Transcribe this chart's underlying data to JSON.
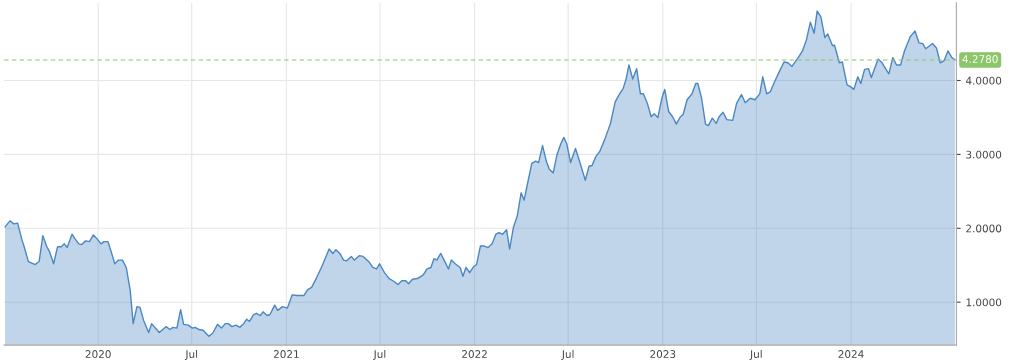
{
  "chart_data": {
    "type": "area",
    "x": [
      2019.505,
      2019.531,
      2019.552,
      2019.572,
      2019.593,
      2019.608,
      2019.629,
      2019.665,
      2019.686,
      2019.706,
      2019.727,
      2019.742,
      2019.763,
      2019.784,
      2019.804,
      2019.82,
      2019.835,
      2019.861,
      2019.876,
      2019.897,
      2019.912,
      2019.933,
      2019.954,
      2019.974,
      2019.99,
      2020.015,
      2020.031,
      2020.052,
      2020.067,
      2020.088,
      2020.108,
      2020.129,
      2020.149,
      2020.17,
      2020.186,
      2020.206,
      2020.222,
      2020.242,
      2020.268,
      2020.284,
      2020.304,
      2020.325,
      2020.361,
      2020.381,
      2020.397,
      2020.418,
      2020.438,
      2020.454,
      2020.479,
      2020.5,
      2020.515,
      2020.536,
      2020.557,
      2020.588,
      2020.608,
      2020.634,
      2020.655,
      2020.675,
      2020.691,
      2020.711,
      2020.732,
      2020.753,
      2020.773,
      2020.789,
      2020.804,
      2020.825,
      2020.84,
      2020.861,
      2020.876,
      2020.897,
      2020.912,
      2020.938,
      2020.954,
      2020.979,
      2021.005,
      2021.031,
      2021.057,
      2021.093,
      2021.113,
      2021.134,
      2021.16,
      2021.186,
      2021.227,
      2021.247,
      2021.263,
      2021.284,
      2021.304,
      2021.32,
      2021.345,
      2021.361,
      2021.387,
      2021.407,
      2021.428,
      2021.438,
      2021.459,
      2021.479,
      2021.495,
      2021.521,
      2021.546,
      2021.572,
      2021.593,
      2021.613,
      2021.634,
      2021.649,
      2021.67,
      2021.696,
      2021.727,
      2021.747,
      2021.768,
      2021.784,
      2021.799,
      2021.82,
      2021.84,
      2021.861,
      2021.876,
      2021.897,
      2021.923,
      2021.938,
      2021.954,
      2021.974,
      2021.995,
      2022.01,
      2022.031,
      2022.052,
      2022.072,
      2022.093,
      2022.113,
      2022.129,
      2022.149,
      2022.17,
      2022.186,
      2022.206,
      2022.227,
      2022.247,
      2022.263,
      2022.284,
      2022.304,
      2022.325,
      2022.34,
      2022.361,
      2022.381,
      2022.397,
      2022.418,
      2022.438,
      2022.459,
      2022.474,
      2022.49,
      2022.51,
      2022.536,
      2022.562,
      2022.588,
      2022.608,
      2022.624,
      2022.644,
      2022.665,
      2022.691,
      2022.722,
      2022.747,
      2022.768,
      2022.789,
      2022.804,
      2022.82,
      2022.84,
      2022.861,
      2022.881,
      2022.897,
      2022.918,
      2022.938,
      2022.954,
      2022.974,
      2022.995,
      2023.01,
      2023.031,
      2023.052,
      2023.072,
      2023.093,
      2023.108,
      2023.129,
      2023.155,
      2023.175,
      2023.186,
      2023.206,
      2023.227,
      2023.242,
      2023.263,
      2023.284,
      2023.299,
      2023.32,
      2023.34,
      2023.371,
      2023.392,
      2023.418,
      2023.438,
      2023.464,
      2023.49,
      2023.515,
      2023.531,
      2023.552,
      2023.572,
      2023.593,
      2023.619,
      2023.644,
      2023.665,
      2023.686,
      2023.722,
      2023.742,
      2023.763,
      2023.784,
      2023.804,
      2023.82,
      2023.84,
      2023.861,
      2023.876,
      2023.902,
      2023.912,
      2023.938,
      2023.954,
      2023.979,
      2023.995,
      2024.015,
      2024.036,
      2024.052,
      2024.072,
      2024.093,
      2024.108,
      2024.144,
      2024.165,
      2024.201,
      2024.222,
      2024.242,
      2024.263,
      2024.284,
      2024.314,
      2024.34,
      2024.361,
      2024.381,
      2024.397,
      2024.433,
      2024.454,
      2024.474,
      2024.495,
      2024.515,
      2024.536,
      2024.552
    ],
    "series": [
      {
        "color": "#4a87c2",
        "values": [
          2.02,
          2.1,
          2.06,
          2.07,
          1.86,
          1.74,
          1.55,
          1.51,
          1.55,
          1.9,
          1.75,
          1.68,
          1.52,
          1.75,
          1.75,
          1.79,
          1.74,
          1.92,
          1.86,
          1.79,
          1.78,
          1.83,
          1.82,
          1.91,
          1.87,
          1.79,
          1.82,
          1.82,
          1.7,
          1.52,
          1.57,
          1.57,
          1.47,
          1.16,
          0.71,
          0.94,
          0.93,
          0.75,
          0.59,
          0.71,
          0.65,
          0.59,
          0.67,
          0.63,
          0.66,
          0.65,
          0.9,
          0.7,
          0.69,
          0.65,
          0.66,
          0.63,
          0.62,
          0.54,
          0.58,
          0.7,
          0.65,
          0.71,
          0.71,
          0.67,
          0.69,
          0.66,
          0.71,
          0.77,
          0.74,
          0.83,
          0.85,
          0.82,
          0.87,
          0.82,
          0.83,
          0.96,
          0.89,
          0.94,
          0.92,
          1.1,
          1.09,
          1.09,
          1.17,
          1.2,
          1.33,
          1.47,
          1.72,
          1.66,
          1.71,
          1.66,
          1.57,
          1.56,
          1.62,
          1.57,
          1.63,
          1.62,
          1.57,
          1.55,
          1.47,
          1.45,
          1.52,
          1.4,
          1.32,
          1.28,
          1.24,
          1.29,
          1.29,
          1.25,
          1.31,
          1.32,
          1.37,
          1.45,
          1.47,
          1.59,
          1.57,
          1.66,
          1.56,
          1.45,
          1.57,
          1.52,
          1.47,
          1.35,
          1.47,
          1.4,
          1.48,
          1.51,
          1.76,
          1.76,
          1.74,
          1.79,
          1.92,
          1.94,
          1.92,
          1.98,
          1.72,
          2.01,
          2.17,
          2.48,
          2.38,
          2.64,
          2.88,
          2.91,
          2.89,
          3.12,
          2.91,
          2.8,
          2.75,
          3.0,
          3.15,
          3.23,
          3.14,
          2.89,
          3.08,
          2.87,
          2.65,
          2.84,
          2.85,
          2.97,
          3.04,
          3.2,
          3.42,
          3.71,
          3.81,
          3.89,
          4.01,
          4.21,
          4.02,
          4.16,
          3.82,
          3.82,
          3.69,
          3.51,
          3.55,
          3.5,
          3.76,
          3.88,
          3.58,
          3.51,
          3.41,
          3.51,
          3.54,
          3.74,
          3.82,
          3.96,
          3.96,
          3.76,
          3.41,
          3.39,
          3.49,
          3.42,
          3.51,
          3.57,
          3.47,
          3.46,
          3.69,
          3.81,
          3.7,
          3.76,
          3.74,
          3.82,
          4.05,
          3.82,
          3.85,
          3.98,
          4.12,
          4.25,
          4.24,
          4.19,
          4.32,
          4.4,
          4.55,
          4.79,
          4.64,
          4.94,
          4.86,
          4.58,
          4.63,
          4.47,
          4.48,
          4.24,
          4.25,
          3.94,
          3.92,
          3.88,
          4.05,
          3.96,
          4.15,
          4.16,
          4.04,
          4.29,
          4.24,
          4.09,
          4.31,
          4.21,
          4.21,
          4.4,
          4.59,
          4.67,
          4.51,
          4.5,
          4.43,
          4.5,
          4.44,
          4.24,
          4.27,
          4.4,
          4.31,
          4.28
        ]
      }
    ],
    "xlim": [
      2019.5,
      2024.56
    ],
    "ylim": [
      0.42,
      5.05
    ],
    "xticks": [
      {
        "value": 2020,
        "label": "2020"
      },
      {
        "value": 2020.497,
        "label": "Jul"
      },
      {
        "value": 2021,
        "label": "2021"
      },
      {
        "value": 2021.497,
        "label": "Jul"
      },
      {
        "value": 2022,
        "label": "2022"
      },
      {
        "value": 2022.497,
        "label": "Jul"
      },
      {
        "value": 2023,
        "label": "2023"
      },
      {
        "value": 2023.497,
        "label": "Jul"
      },
      {
        "value": 2024,
        "label": "2024"
      }
    ],
    "yticks": [
      {
        "value": 1,
        "label": "1.0000"
      },
      {
        "value": 2,
        "label": "2.0000"
      },
      {
        "value": 3,
        "label": "3.0000"
      },
      {
        "value": 4,
        "label": "4.0000"
      }
    ],
    "grid": true,
    "ref_lines": [
      {
        "axis": "y",
        "value": 4.278,
        "label": "4.2780",
        "color": "#8cc56a",
        "line_style": "dashed"
      }
    ]
  }
}
